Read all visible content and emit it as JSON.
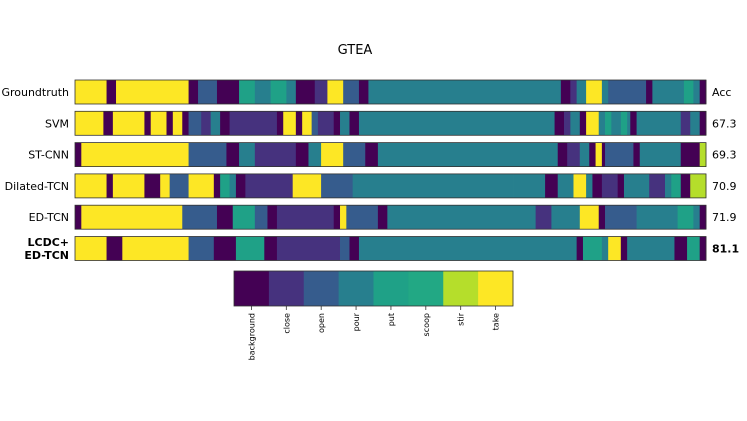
{
  "chart_data": {
    "type": "segmentation-timeline",
    "title": "GTEA",
    "accuracy_header": "Acc",
    "time_range": [
      0,
      100
    ],
    "classes": [
      {
        "name": "background",
        "color": "#440154"
      },
      {
        "name": "close",
        "color": "#46327e"
      },
      {
        "name": "open",
        "color": "#365c8d"
      },
      {
        "name": "pour",
        "color": "#277f8e"
      },
      {
        "name": "put",
        "color": "#1fa187"
      },
      {
        "name": "scoop",
        "color": "#22a884"
      },
      {
        "name": "stir",
        "color": "#b5de2b"
      },
      {
        "name": "take",
        "color": "#fde725"
      }
    ],
    "rows": [
      {
        "label": "Groundtruth",
        "acc": "",
        "bold": false,
        "segments": [
          [
            "take",
            0,
            5
          ],
          [
            "background",
            5,
            6.5
          ],
          [
            "take",
            6.5,
            18
          ],
          [
            "background",
            18,
            19.5
          ],
          [
            "open",
            19.5,
            22.5
          ],
          [
            "background",
            22.5,
            26
          ],
          [
            "put",
            26,
            28.5
          ],
          [
            "pour",
            28.5,
            31
          ],
          [
            "put",
            31,
            33.5
          ],
          [
            "pour",
            33.5,
            35
          ],
          [
            "background",
            35,
            38
          ],
          [
            "close",
            38,
            40
          ],
          [
            "take",
            40,
            42.5
          ],
          [
            "open",
            42.5,
            45
          ],
          [
            "background",
            45,
            46.5
          ],
          [
            "pour",
            46.5,
            77
          ],
          [
            "background",
            77,
            78.5
          ],
          [
            "close",
            78.5,
            79.5
          ],
          [
            "pour",
            79.5,
            81
          ],
          [
            "take",
            81,
            83.5
          ],
          [
            "pour",
            83.5,
            84.5
          ],
          [
            "open",
            84.5,
            90.5
          ],
          [
            "background",
            90.5,
            91.5
          ],
          [
            "pour",
            91.5,
            96.5
          ],
          [
            "put",
            96.5,
            98
          ],
          [
            "pour",
            98,
            99
          ],
          [
            "background",
            99,
            100
          ]
        ]
      },
      {
        "label": "SVM",
        "acc": "67.3",
        "bold": false,
        "segments": [
          [
            "take",
            0,
            4.5
          ],
          [
            "background",
            4.5,
            6
          ],
          [
            "take",
            6,
            11
          ],
          [
            "background",
            11,
            12
          ],
          [
            "take",
            12,
            14.5
          ],
          [
            "background",
            14.5,
            15.5
          ],
          [
            "take",
            15.5,
            17
          ],
          [
            "background",
            17,
            18
          ],
          [
            "open",
            18,
            20
          ],
          [
            "close",
            20,
            21.5
          ],
          [
            "pour",
            21.5,
            23
          ],
          [
            "background",
            23,
            24.5
          ],
          [
            "close",
            24.5,
            32
          ],
          [
            "background",
            32,
            33
          ],
          [
            "take",
            33,
            35
          ],
          [
            "background",
            35,
            36
          ],
          [
            "take",
            36,
            37.5
          ],
          [
            "open",
            37.5,
            38.5
          ],
          [
            "close",
            38.5,
            41
          ],
          [
            "background",
            41,
            42
          ],
          [
            "pour",
            42,
            43.5
          ],
          [
            "background",
            43.5,
            45
          ],
          [
            "pour",
            45,
            76
          ],
          [
            "background",
            76,
            77.5
          ],
          [
            "close",
            77.5,
            78.5
          ],
          [
            "pour",
            78.5,
            80
          ],
          [
            "background",
            80,
            81
          ],
          [
            "take",
            81,
            83
          ],
          [
            "pour",
            83,
            84
          ],
          [
            "put",
            84,
            85
          ],
          [
            "pour",
            85,
            86.5
          ],
          [
            "put",
            86.5,
            87.5
          ],
          [
            "pour",
            87.5,
            88
          ],
          [
            "background",
            88,
            89
          ],
          [
            "pour",
            89,
            96
          ],
          [
            "close",
            96,
            97.5
          ],
          [
            "pour",
            97.5,
            99
          ],
          [
            "background",
            99,
            100
          ]
        ]
      },
      {
        "label": "ST-CNN",
        "acc": "69.3",
        "bold": false,
        "segments": [
          [
            "background",
            0,
            1
          ],
          [
            "take",
            1,
            18
          ],
          [
            "open",
            18,
            24
          ],
          [
            "background",
            24,
            26
          ],
          [
            "pour",
            26,
            28.5
          ],
          [
            "close",
            28.5,
            35
          ],
          [
            "background",
            35,
            37
          ],
          [
            "pour",
            37,
            39
          ],
          [
            "take",
            39,
            42.5
          ],
          [
            "open",
            42.5,
            46
          ],
          [
            "background",
            46,
            48
          ],
          [
            "pour",
            48,
            76.5
          ],
          [
            "background",
            76.5,
            78
          ],
          [
            "close",
            78,
            80
          ],
          [
            "pour",
            80,
            81.5
          ],
          [
            "background",
            81.5,
            82.5
          ],
          [
            "take",
            82.5,
            83.5
          ],
          [
            "background",
            83.5,
            84
          ],
          [
            "open",
            84,
            88.5
          ],
          [
            "background",
            88.5,
            89.5
          ],
          [
            "pour",
            89.5,
            96
          ],
          [
            "background",
            96,
            99
          ],
          [
            "stir",
            99,
            100
          ]
        ]
      },
      {
        "label": "Dilated-TCN",
        "acc": "70.9",
        "bold": false,
        "segments": [
          [
            "take",
            0,
            5
          ],
          [
            "background",
            5,
            6
          ],
          [
            "take",
            6,
            11
          ],
          [
            "background",
            11,
            13.5
          ],
          [
            "take",
            13.5,
            15
          ],
          [
            "open",
            15,
            18
          ],
          [
            "take",
            18,
            22
          ],
          [
            "background",
            22,
            23
          ],
          [
            "put",
            23,
            24.5
          ],
          [
            "pour",
            24.5,
            25.5
          ],
          [
            "background",
            25.5,
            27
          ],
          [
            "close",
            27,
            34.5
          ],
          [
            "take",
            34.5,
            39
          ],
          [
            "open",
            39,
            44
          ],
          [
            "pour",
            44,
            69.5
          ],
          [
            "pour",
            69.5,
            74.5
          ],
          [
            "background",
            74.5,
            76.5
          ],
          [
            "pour",
            76.5,
            79
          ],
          [
            "take",
            79,
            81
          ],
          [
            "pour",
            81,
            82
          ],
          [
            "background",
            82,
            83.5
          ],
          [
            "close",
            83.5,
            86
          ],
          [
            "background",
            86,
            87
          ],
          [
            "pour",
            87,
            91
          ],
          [
            "close",
            91,
            93.5
          ],
          [
            "pour",
            93.5,
            94.5
          ],
          [
            "put",
            94.5,
            96
          ],
          [
            "background",
            96,
            97.5
          ],
          [
            "stir",
            97.5,
            100
          ]
        ]
      },
      {
        "label": "ED-TCN",
        "acc": "71.9",
        "bold": false,
        "segments": [
          [
            "background",
            0,
            1
          ],
          [
            "take",
            1,
            17
          ],
          [
            "open",
            17,
            22.5
          ],
          [
            "background",
            22.5,
            25
          ],
          [
            "put",
            25,
            28.5
          ],
          [
            "open",
            28.5,
            30.5
          ],
          [
            "background",
            30.5,
            32
          ],
          [
            "close",
            32,
            41
          ],
          [
            "background",
            41,
            42
          ],
          [
            "take",
            42,
            43
          ],
          [
            "open",
            43,
            48
          ],
          [
            "background",
            48,
            49.5
          ],
          [
            "pour",
            49.5,
            73
          ],
          [
            "close",
            73,
            75.5
          ],
          [
            "pour",
            75.5,
            80
          ],
          [
            "take",
            80,
            83
          ],
          [
            "background",
            83,
            84
          ],
          [
            "open",
            84,
            89
          ],
          [
            "pour",
            89,
            95.5
          ],
          [
            "put",
            95.5,
            98
          ],
          [
            "pour",
            98,
            99
          ],
          [
            "background",
            99,
            100
          ]
        ]
      },
      {
        "label": "LCDC+\nED-TCN",
        "acc": "81.1",
        "bold": true,
        "segments": [
          [
            "take",
            0,
            5
          ],
          [
            "background",
            5,
            7.5
          ],
          [
            "take",
            7.5,
            18
          ],
          [
            "open",
            18,
            22
          ],
          [
            "background",
            22,
            25.5
          ],
          [
            "put",
            25.5,
            30
          ],
          [
            "background",
            30,
            32
          ],
          [
            "close",
            32,
            42
          ],
          [
            "open",
            42,
            43.5
          ],
          [
            "background",
            43.5,
            45
          ],
          [
            "pour",
            45,
            79.5
          ],
          [
            "background",
            79.5,
            80.5
          ],
          [
            "put",
            80.5,
            83.5
          ],
          [
            "pour",
            83.5,
            84.5
          ],
          [
            "take",
            84.5,
            86.5
          ],
          [
            "background",
            86.5,
            87.5
          ],
          [
            "pour",
            87.5,
            95
          ],
          [
            "background",
            95,
            97
          ],
          [
            "put",
            97,
            99
          ],
          [
            "background",
            99,
            100
          ]
        ]
      }
    ]
  }
}
